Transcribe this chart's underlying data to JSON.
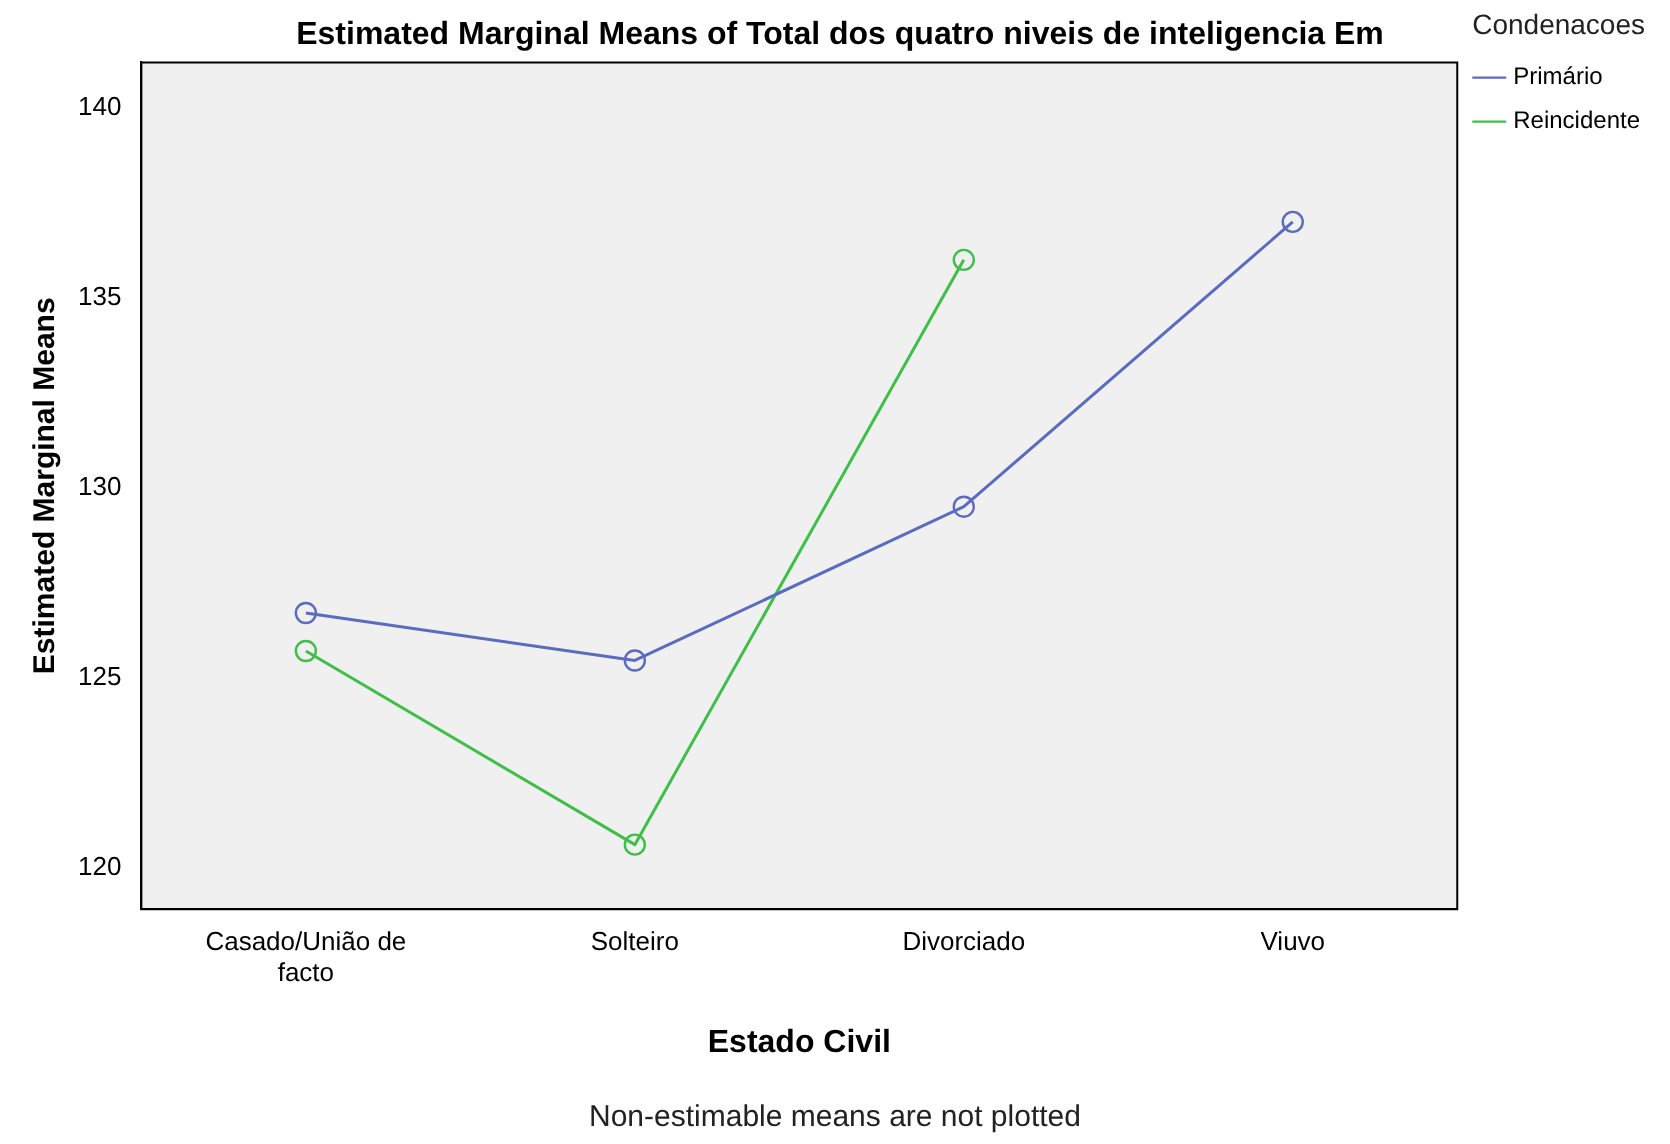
{
  "chart_data": {
    "type": "line",
    "title": "Estimated Marginal Means of Total dos quatro niveis de inteligencia Em",
    "xlabel": "Estado Civil",
    "ylabel": "Estimated Marginal Means",
    "legend_title": "Condenacoes",
    "categories": [
      "Casado/União de facto",
      "Solteiro",
      "Divorciado",
      "Viuvo"
    ],
    "series": [
      {
        "name": "Primário",
        "color": "#5b6bc0",
        "values": [
          126.7,
          125.45,
          129.5,
          137.0
        ]
      },
      {
        "name": "Reincidente",
        "color": "#3fbf4a",
        "values": [
          125.7,
          120.6,
          136.0,
          null
        ]
      }
    ],
    "ylim": [
      118.9,
      141.2
    ],
    "yticks": [
      120,
      125,
      130,
      135,
      140
    ],
    "grid": false,
    "legend": "top right",
    "marker": "circle",
    "line_style": "solid",
    "annotations": [
      "Non-estimable means are not plotted"
    ]
  }
}
